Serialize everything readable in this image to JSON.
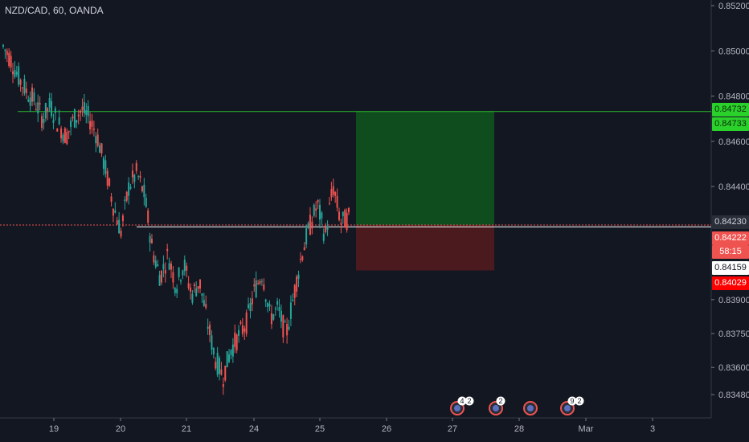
{
  "header": {
    "title": "NZD/CAD, 60, OANDA"
  },
  "colors": {
    "bg": "#131722",
    "up": "#26a69a",
    "down": "#ef5350",
    "profit": "#0f4d1f",
    "loss": "#4a1a1e",
    "tp_line": "#2bbd2b"
  },
  "chart_data": {
    "type": "candlestick",
    "title": "NZD/CAD, 60, OANDA",
    "ylim": [
      0.834,
      0.8528
    ],
    "y_ticks": [
      "0.85200",
      "0.85000",
      "0.84800",
      "0.84600",
      "0.84400",
      "0.83900",
      "0.83750",
      "0.83600",
      "0.83480"
    ],
    "x_ticks": [
      "19",
      "20",
      "21",
      "24",
      "25",
      "26",
      "27",
      "28",
      "Mar",
      "3"
    ],
    "series": [
      {
        "values": [
          0.8502,
          0.8496,
          0.8488,
          0.8482,
          0.8478,
          0.847,
          0.8476,
          0.8468,
          0.8462,
          0.847,
          0.8474,
          0.847,
          0.8462,
          0.8448,
          0.8432,
          0.842,
          0.844,
          0.8446,
          0.8436,
          0.8412,
          0.84,
          0.841,
          0.8396,
          0.8406,
          0.8392,
          0.8398,
          0.838,
          0.8364,
          0.8356,
          0.8368,
          0.8374,
          0.838,
          0.8394,
          0.8402,
          0.8382,
          0.8386,
          0.8374,
          0.8392,
          0.841,
          0.8422,
          0.8432,
          0.8418,
          0.844,
          0.8424,
          0.8426
        ]
      }
    ],
    "levels": [
      {
        "label": "0.84732",
        "value": 0.84732
      },
      {
        "label": "0.84733",
        "value": 0.84733
      },
      {
        "label": "0.84230",
        "value": 0.8423
      },
      {
        "label": "0.84222",
        "value": 0.84222
      },
      {
        "label": "0.84159",
        "value": 0.84159
      },
      {
        "label": "0.84029",
        "value": 0.84029
      }
    ],
    "countdown": "58:15",
    "events": [
      {
        "x_label": "27",
        "badge": "4",
        "badge2": "2"
      },
      {
        "x_label": "27",
        "badge": "2"
      },
      {
        "x_label": "28",
        "badge": ""
      },
      {
        "x_label": "Mar",
        "badge": "9",
        "badge2": "2"
      }
    ]
  }
}
